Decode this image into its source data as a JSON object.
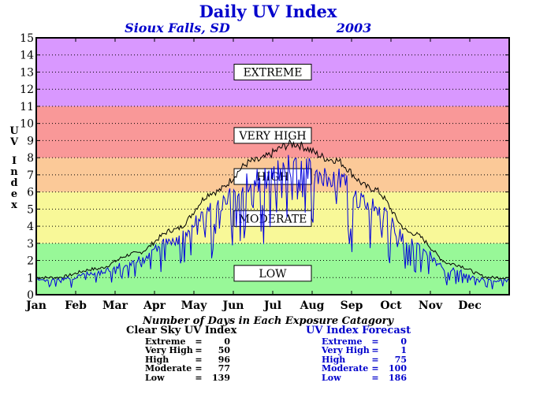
{
  "title": "Daily UV Index",
  "location": "Sioux Falls, SD",
  "year": "2003",
  "counts_title": "Number of Days in Each Exposure Catagory",
  "clear_sky": {
    "title": "Clear Sky UV Index",
    "rows": [
      {
        "label": "Extreme",
        "value": "0"
      },
      {
        "label": "Very High",
        "value": "50"
      },
      {
        "label": "High",
        "value": "96"
      },
      {
        "label": "Moderate",
        "value": "77"
      },
      {
        "label": "Low",
        "value": "139"
      }
    ]
  },
  "forecast": {
    "title": "UV Index Forecast",
    "rows": [
      {
        "label": "Extreme",
        "value": "0"
      },
      {
        "label": "Very High",
        "value": "1"
      },
      {
        "label": "High",
        "value": "75"
      },
      {
        "label": "Moderate",
        "value": "100"
      },
      {
        "label": "Low",
        "value": "186"
      }
    ]
  },
  "colors": {
    "extreme": "#d998ff",
    "very_high": "#f99898",
    "high": "#fbc998",
    "moderate": "#f8f898",
    "low": "#98f898",
    "clear_sky_line": "#000000",
    "forecast_line": "#0000dd",
    "title": "#0000cc"
  },
  "chart_data": {
    "type": "line",
    "ylabel": "UV Index",
    "ylim": [
      0,
      15
    ],
    "yticks": [
      0,
      1,
      2,
      3,
      4,
      5,
      6,
      7,
      8,
      9,
      10,
      11,
      12,
      13,
      14,
      15
    ],
    "grid": true,
    "x_categories": [
      "Jan",
      "Feb",
      "Mar",
      "Apr",
      "May",
      "Jun",
      "Jul",
      "Aug",
      "Sep",
      "Oct",
      "Nov",
      "Dec"
    ],
    "bands": [
      {
        "label": "LOW",
        "from": 0,
        "to": 3
      },
      {
        "label": "MODERATE",
        "from": 3,
        "to": 6
      },
      {
        "label": "HIGH",
        "from": 6,
        "to": 8
      },
      {
        "label": "VERY HIGH",
        "from": 8,
        "to": 11
      },
      {
        "label": "EXTREME",
        "from": 11,
        "to": 15
      }
    ],
    "series": [
      {
        "name": "Clear Sky UV Index",
        "x": [
          "Jan",
          "Feb",
          "Mar",
          "Apr",
          "May",
          "Jun",
          "Jul",
          "Aug",
          "Sep",
          "Oct",
          "Nov",
          "Dec"
        ],
        "values": [
          1.0,
          1.5,
          2.4,
          3.8,
          6.0,
          7.8,
          8.8,
          7.9,
          6.2,
          3.6,
          1.8,
          1.0
        ]
      },
      {
        "name": "UV Index Forecast",
        "x": [
          "Jan",
          "Feb",
          "Mar",
          "Apr",
          "May",
          "Jun",
          "Jul",
          "Aug",
          "Sep",
          "Oct",
          "Nov",
          "Dec"
        ],
        "values": [
          0.8,
          1.1,
          1.8,
          3.0,
          4.8,
          6.3,
          7.1,
          6.6,
          4.6,
          2.8,
          1.1,
          0.7
        ]
      }
    ]
  }
}
